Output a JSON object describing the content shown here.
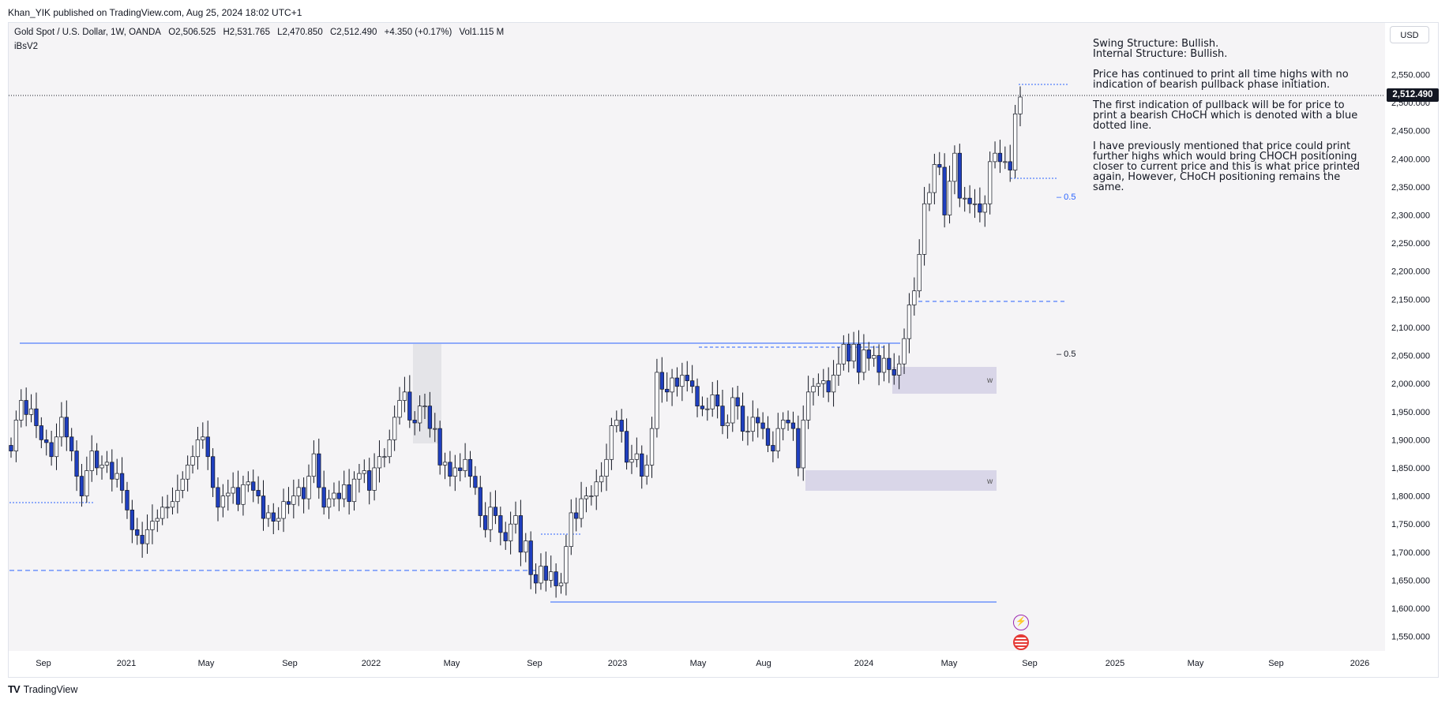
{
  "header": {
    "published_by": "Khan_YIK published on TradingView.com, Aug 25, 2024 18:02 UTC+1"
  },
  "symbol": {
    "name": "Gold Spot / U.S. Dollar, 1W, OANDA",
    "open": "O2,506.525",
    "high": "H2,531.765",
    "low": "L2,470.850",
    "close": "C2,512.490",
    "change": "+4.350 (+0.17%)",
    "volume": "Vol1.115 M",
    "indicator": "iBsV2"
  },
  "currency_button": "USD",
  "current_price": "2,512.490",
  "annotation": {
    "p1_l1": "Swing Structure: Bullish.",
    "p1_l2": "Internal Structure: Bullish.",
    "p2": "Price has continued to print all time highs with no indication of bearish pullback phase initiation.",
    "p3": "The first indication of pullback will be for price to print a bearish CHoCH which is denoted with a blue dotted line.",
    "p4": "I have previously mentioned that price could print further highs which would bring CHOCH positioning closer to current price and this is what price printed again, However, CHoCH positioning remains the same."
  },
  "fib_labels": [
    "0.5",
    "0.5"
  ],
  "zone_label": "w",
  "footer": {
    "brand": "TradingView"
  },
  "colors": {
    "background": "#f5f4f6",
    "bull_candle": "#ffffff",
    "bear_candle": "#1f3fbf",
    "wick": "#131722",
    "structure_line": "#2962ff",
    "zone_fill": "#d9d6e8",
    "premium_box": "#e4e4e8"
  },
  "chart_data": {
    "type": "candlestick",
    "timeframe": "1W",
    "y_axis_ticks": [
      1550,
      1600,
      1650,
      1700,
      1750,
      1800,
      1850,
      1900,
      1950,
      2000,
      2050,
      2100,
      2150,
      2200,
      2250,
      2300,
      2350,
      2400,
      2450,
      2500,
      2550
    ],
    "y_tick_labels": [
      "1,550.000",
      "1,600.000",
      "1,650.000",
      "1,700.000",
      "1,750.000",
      "1,800.000",
      "1,850.000",
      "1,900.000",
      "1,950.000",
      "2,000.000",
      "2,050.000",
      "2,100.000",
      "2,150.000",
      "2,200.000",
      "2,250.000",
      "2,300.000",
      "2,350.000",
      "2,400.000",
      "2,450.000",
      "2,500.000",
      "2,550.000"
    ],
    "ylim": [
      1520,
      2580
    ],
    "x_axis_labels": [
      "Sep",
      "2021",
      "May",
      "Sep",
      "2022",
      "May",
      "Sep",
      "2023",
      "May",
      "Aug",
      "2024",
      "May",
      "Sep",
      "2025",
      "May",
      "Sep",
      "2026"
    ],
    "closes": [
      1880,
      1935,
      1970,
      1945,
      1955,
      1925,
      1900,
      1895,
      1870,
      1905,
      1940,
      1905,
      1880,
      1835,
      1800,
      1845,
      1880,
      1850,
      1855,
      1860,
      1830,
      1840,
      1810,
      1775,
      1740,
      1730,
      1715,
      1740,
      1755,
      1760,
      1780,
      1780,
      1790,
      1810,
      1830,
      1855,
      1870,
      1900,
      1905,
      1870,
      1815,
      1780,
      1800,
      1805,
      1815,
      1785,
      1820,
      1825,
      1810,
      1800,
      1760,
      1770,
      1755,
      1760,
      1790,
      1785,
      1800,
      1815,
      1795,
      1835,
      1875,
      1815,
      1780,
      1795,
      1805,
      1795,
      1820,
      1790,
      1830,
      1840,
      1845,
      1810,
      1850,
      1870,
      1870,
      1900,
      1940,
      1970,
      1985,
      1935,
      1930,
      1960,
      1960,
      1920,
      1920,
      1855,
      1860,
      1835,
      1850,
      1845,
      1865,
      1835,
      1815,
      1765,
      1740,
      1780,
      1765,
      1735,
      1720,
      1750,
      1765,
      1700,
      1720,
      1660,
      1645,
      1675,
      1650,
      1665,
      1640,
      1645,
      1710,
      1770,
      1760,
      1795,
      1800,
      1800,
      1825,
      1835,
      1865,
      1925,
      1935,
      1915,
      1860,
      1865,
      1875,
      1835,
      1855,
      1920,
      2020,
      1990,
      1985,
      2010,
      1995,
      2015,
      2005,
      1995,
      1960,
      1955,
      1955,
      1980,
      1960,
      1925,
      1930,
      1975,
      1960,
      1915,
      1915,
      1940,
      1930,
      1920,
      1890,
      1880,
      1920,
      1935,
      1930,
      1920,
      1850,
      1935,
      1985,
      1995,
      2000,
      2005,
      1985,
      2015,
      2035,
      2070,
      2040,
      2070,
      2020,
      2060,
      2045,
      2050,
      2020,
      2045,
      2025,
      2015,
      2035,
      2080,
      2140,
      2165,
      2230,
      2320,
      2340,
      2390,
      2385,
      2300,
      2360,
      2410,
      2330,
      2330,
      2320,
      2320,
      2305,
      2320,
      2395,
      2410,
      2395,
      2395,
      2380,
      2480,
      2510
    ]
  }
}
